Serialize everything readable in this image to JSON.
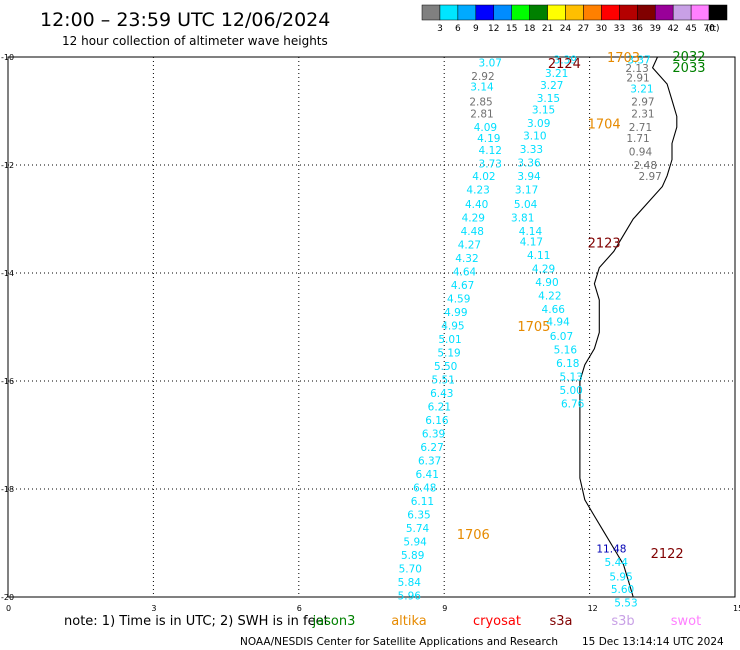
{
  "header": {
    "title": "12:00 – 23:59 UTC 12/06/2024",
    "subtitle": "12 hour collection of altimeter wave heights"
  },
  "colorbar": {
    "unit": "(ft)",
    "colors": [
      "#808080",
      "#00e5ff",
      "#00aaff",
      "#0000ff",
      "#008cff",
      "#00ff00",
      "#008000",
      "#ffff00",
      "#ffbf00",
      "#ff8000",
      "#ff0000",
      "#b40000",
      "#800000",
      "#990099",
      "#c8a0e6",
      "#ff80ff",
      "#000000"
    ],
    "ticks": [
      "3",
      "6",
      "9",
      "12",
      "15",
      "18",
      "21",
      "24",
      "27",
      "30",
      "33",
      "36",
      "39",
      "42",
      "45",
      "70"
    ]
  },
  "axes": {
    "lat_labels": [
      "-10",
      "-12",
      "-14",
      "-16",
      "-18",
      "-20"
    ],
    "lon_labels": [
      "0",
      "3",
      "6",
      "9",
      "12",
      "15"
    ]
  },
  "coast": [
    [
      -10.0,
      13.4
    ],
    [
      -10.2,
      13.3
    ],
    [
      -10.5,
      13.6
    ],
    [
      -10.8,
      13.7
    ],
    [
      -11.1,
      13.8
    ],
    [
      -11.3,
      13.8
    ],
    [
      -11.6,
      13.7
    ],
    [
      -11.9,
      13.7
    ],
    [
      -12.2,
      13.6
    ],
    [
      -12.4,
      13.5
    ],
    [
      -12.7,
      13.2
    ],
    [
      -13.0,
      12.9
    ],
    [
      -13.3,
      12.7
    ],
    [
      -13.6,
      12.5
    ],
    [
      -13.9,
      12.2
    ],
    [
      -14.2,
      12.1
    ],
    [
      -14.5,
      12.2
    ],
    [
      -14.8,
      12.2
    ],
    [
      -15.1,
      12.2
    ],
    [
      -15.4,
      12.1
    ],
    [
      -15.7,
      11.9
    ],
    [
      -16.0,
      11.8
    ],
    [
      -16.3,
      11.8
    ],
    [
      -16.6,
      11.8
    ],
    [
      -17.0,
      11.8
    ],
    [
      -17.4,
      11.8
    ],
    [
      -17.8,
      11.8
    ],
    [
      -18.2,
      11.9
    ],
    [
      -18.5,
      12.1
    ],
    [
      -18.8,
      12.3
    ],
    [
      -19.1,
      12.5
    ],
    [
      -19.4,
      12.7
    ],
    [
      -19.7,
      12.8
    ],
    [
      -20.0,
      12.9
    ]
  ],
  "tracks": [
    {
      "color": "#00dfff",
      "points": [
        {
          "lat": -10.1,
          "lon": 9.95,
          "v": "3.07"
        },
        {
          "lat": -10.35,
          "lon": 9.8,
          "v": "2.92",
          "color": "#707070"
        },
        {
          "lat": -10.55,
          "lon": 9.78,
          "v": "3.14"
        },
        {
          "lat": -10.82,
          "lon": 9.76,
          "v": "2.85",
          "color": "#707070"
        },
        {
          "lat": -11.05,
          "lon": 9.78,
          "v": "2.81",
          "color": "#707070"
        },
        {
          "lat": -11.3,
          "lon": 9.85,
          "v": "4.09"
        },
        {
          "lat": -11.5,
          "lon": 9.92,
          "v": "4.19"
        },
        {
          "lat": -11.72,
          "lon": 9.95,
          "v": "4.12"
        },
        {
          "lat": -11.97,
          "lon": 9.95,
          "v": "3.73"
        },
        {
          "lat": -12.2,
          "lon": 9.82,
          "v": "4.02"
        },
        {
          "lat": -12.45,
          "lon": 9.7,
          "v": "4.23"
        },
        {
          "lat": -12.72,
          "lon": 9.67,
          "v": "4.40"
        },
        {
          "lat": -12.97,
          "lon": 9.6,
          "v": "4.29"
        },
        {
          "lat": -13.22,
          "lon": 9.58,
          "v": "4.48"
        },
        {
          "lat": -13.47,
          "lon": 9.52,
          "v": "4.27"
        },
        {
          "lat": -13.72,
          "lon": 9.47,
          "v": "4.32"
        },
        {
          "lat": -13.97,
          "lon": 9.42,
          "v": "4.64"
        },
        {
          "lat": -14.22,
          "lon": 9.38,
          "v": "4.67"
        },
        {
          "lat": -14.47,
          "lon": 9.3,
          "v": "4.59"
        },
        {
          "lat": -14.72,
          "lon": 9.24,
          "v": "4.99"
        },
        {
          "lat": -14.97,
          "lon": 9.18,
          "v": "4.95"
        },
        {
          "lat": -15.22,
          "lon": 9.12,
          "v": "5.01"
        },
        {
          "lat": -15.47,
          "lon": 9.1,
          "v": "5.19"
        },
        {
          "lat": -15.72,
          "lon": 9.03,
          "v": "5.50"
        },
        {
          "lat": -15.97,
          "lon": 8.98,
          "v": "5.51"
        },
        {
          "lat": -16.22,
          "lon": 8.95,
          "v": "6.43"
        },
        {
          "lat": -16.47,
          "lon": 8.9,
          "v": "6.21"
        },
        {
          "lat": -16.72,
          "lon": 8.85,
          "v": "6.16"
        },
        {
          "lat": -16.97,
          "lon": 8.78,
          "v": "6.39"
        },
        {
          "lat": -17.22,
          "lon": 8.75,
          "v": "6.27"
        },
        {
          "lat": -17.47,
          "lon": 8.7,
          "v": "6.37"
        },
        {
          "lat": -17.72,
          "lon": 8.65,
          "v": "6.41"
        },
        {
          "lat": -17.97,
          "lon": 8.6,
          "v": "6.48"
        },
        {
          "lat": -18.22,
          "lon": 8.55,
          "v": "6.11"
        },
        {
          "lat": -18.47,
          "lon": 8.48,
          "v": "6.35"
        },
        {
          "lat": -18.72,
          "lon": 8.45,
          "v": "5.74"
        },
        {
          "lat": -18.97,
          "lon": 8.4,
          "v": "5.94"
        },
        {
          "lat": -19.22,
          "lon": 8.35,
          "v": "5.89"
        },
        {
          "lat": -19.47,
          "lon": 8.3,
          "v": "5.70"
        },
        {
          "lat": -19.72,
          "lon": 8.28,
          "v": "5.84"
        },
        {
          "lat": -19.97,
          "lon": 8.28,
          "v": "5.96"
        }
      ]
    },
    {
      "color": "#00dfff",
      "points": [
        {
          "lat": -10.05,
          "lon": 11.5,
          "v": "3.39"
        },
        {
          "lat": -10.3,
          "lon": 11.32,
          "v": "3.21"
        },
        {
          "lat": -10.52,
          "lon": 11.22,
          "v": "3.27"
        },
        {
          "lat": -10.76,
          "lon": 11.15,
          "v": "3.15"
        },
        {
          "lat": -10.97,
          "lon": 11.05,
          "v": "3.15"
        },
        {
          "lat": -11.22,
          "lon": 10.95,
          "v": "3.09"
        },
        {
          "lat": -11.45,
          "lon": 10.87,
          "v": "3.10"
        },
        {
          "lat": -11.7,
          "lon": 10.8,
          "v": "3.33"
        },
        {
          "lat": -11.95,
          "lon": 10.75,
          "v": "3.36"
        },
        {
          "lat": -12.2,
          "lon": 10.75,
          "v": "3.94"
        },
        {
          "lat": -12.45,
          "lon": 10.7,
          "v": "3.17"
        },
        {
          "lat": -12.72,
          "lon": 10.68,
          "v": "5.04"
        },
        {
          "lat": -12.97,
          "lon": 10.62,
          "v": "3.81"
        },
        {
          "lat": -13.22,
          "lon": 10.78,
          "v": "4.14"
        },
        {
          "lat": -13.42,
          "lon": 10.8,
          "v": "4.17"
        },
        {
          "lat": -13.67,
          "lon": 10.95,
          "v": "4.11"
        },
        {
          "lat": -13.92,
          "lon": 11.05,
          "v": "4.29"
        },
        {
          "lat": -14.17,
          "lon": 11.12,
          "v": "4.90"
        },
        {
          "lat": -14.42,
          "lon": 11.18,
          "v": "4.22"
        },
        {
          "lat": -14.67,
          "lon": 11.25,
          "v": "4.66"
        },
        {
          "lat": -14.9,
          "lon": 11.35,
          "v": "4.94"
        },
        {
          "lat": -15.17,
          "lon": 11.42,
          "v": "6.07"
        },
        {
          "lat": -15.42,
          "lon": 11.5,
          "v": "5.16"
        },
        {
          "lat": -15.67,
          "lon": 11.55,
          "v": "6.18"
        },
        {
          "lat": -15.92,
          "lon": 11.62,
          "v": "5.13"
        },
        {
          "lat": -16.17,
          "lon": 11.62,
          "v": "5.00"
        },
        {
          "lat": -16.42,
          "lon": 11.65,
          "v": "6.76"
        }
      ]
    },
    {
      "color": "#707070",
      "points": [
        {
          "lat": -10.05,
          "lon": 13.02,
          "v": "3.37",
          "color": "#00dfff"
        },
        {
          "lat": -10.2,
          "lon": 12.98,
          "v": "2.13"
        },
        {
          "lat": -10.38,
          "lon": 13.0,
          "v": "2.91"
        },
        {
          "lat": -10.58,
          "lon": 13.08,
          "v": "3.21",
          "color": "#00dfff"
        },
        {
          "lat": -10.82,
          "lon": 13.1,
          "v": "2.97"
        },
        {
          "lat": -11.05,
          "lon": 13.1,
          "v": "2.31"
        },
        {
          "lat": -11.3,
          "lon": 13.05,
          "v": "2.71"
        },
        {
          "lat": -11.5,
          "lon": 13.0,
          "v": "1.71"
        },
        {
          "lat": -11.75,
          "lon": 13.05,
          "v": "0.94"
        },
        {
          "lat": -12.0,
          "lon": 13.15,
          "v": "2.48"
        },
        {
          "lat": -12.2,
          "lon": 13.25,
          "v": "2.97"
        }
      ]
    },
    {
      "color": "#00dfff",
      "points": [
        {
          "lat": -19.1,
          "lon": 12.45,
          "v": "11.48",
          "color": "#0000b4"
        },
        {
          "lat": -19.35,
          "lon": 12.55,
          "v": "5.44"
        },
        {
          "lat": -19.62,
          "lon": 12.65,
          "v": "5.95"
        },
        {
          "lat": -19.85,
          "lon": 12.68,
          "v": "5.60"
        },
        {
          "lat": -20.1,
          "lon": 12.75,
          "v": "5.53"
        }
      ]
    }
  ],
  "passes": [
    {
      "lat": -10.02,
      "lon": 12.7,
      "label": "1703",
      "color": "#e68a00"
    },
    {
      "lat": -10.13,
      "lon": 11.48,
      "label": "2124",
      "color": "#800000"
    },
    {
      "lat": -10.0,
      "lon": 14.05,
      "label": "2032",
      "color": "#008000"
    },
    {
      "lat": -10.2,
      "lon": 14.05,
      "label": "2033",
      "color": "#008000"
    },
    {
      "lat": -11.25,
      "lon": 12.3,
      "label": "1704",
      "color": "#e68a00"
    },
    {
      "lat": -13.45,
      "lon": 12.3,
      "label": "2123",
      "color": "#800000"
    },
    {
      "lat": -15.0,
      "lon": 10.85,
      "label": "1705",
      "color": "#e68a00"
    },
    {
      "lat": -18.85,
      "lon": 9.6,
      "label": "1706",
      "color": "#e68a00"
    },
    {
      "lat": -19.2,
      "lon": 13.6,
      "label": "2122",
      "color": "#800000"
    }
  ],
  "footer": {
    "note": "note: 1) Time is in UTC; 2) SWH is in feet",
    "missions": [
      {
        "name": "jason3",
        "color": "#008000"
      },
      {
        "name": "altika",
        "color": "#e68a00"
      },
      {
        "name": "cryosat",
        "color": "#ff0000"
      },
      {
        "name": "s3a",
        "color": "#800000"
      },
      {
        "name": "s3b",
        "color": "#c8a0e6"
      },
      {
        "name": "swot",
        "color": "#ff80ff"
      }
    ],
    "credit": "NOAA/NESDIS Center for Satellite Applications and Research",
    "timestamp": "15 Dec 13:14:14 UTC 2024"
  }
}
